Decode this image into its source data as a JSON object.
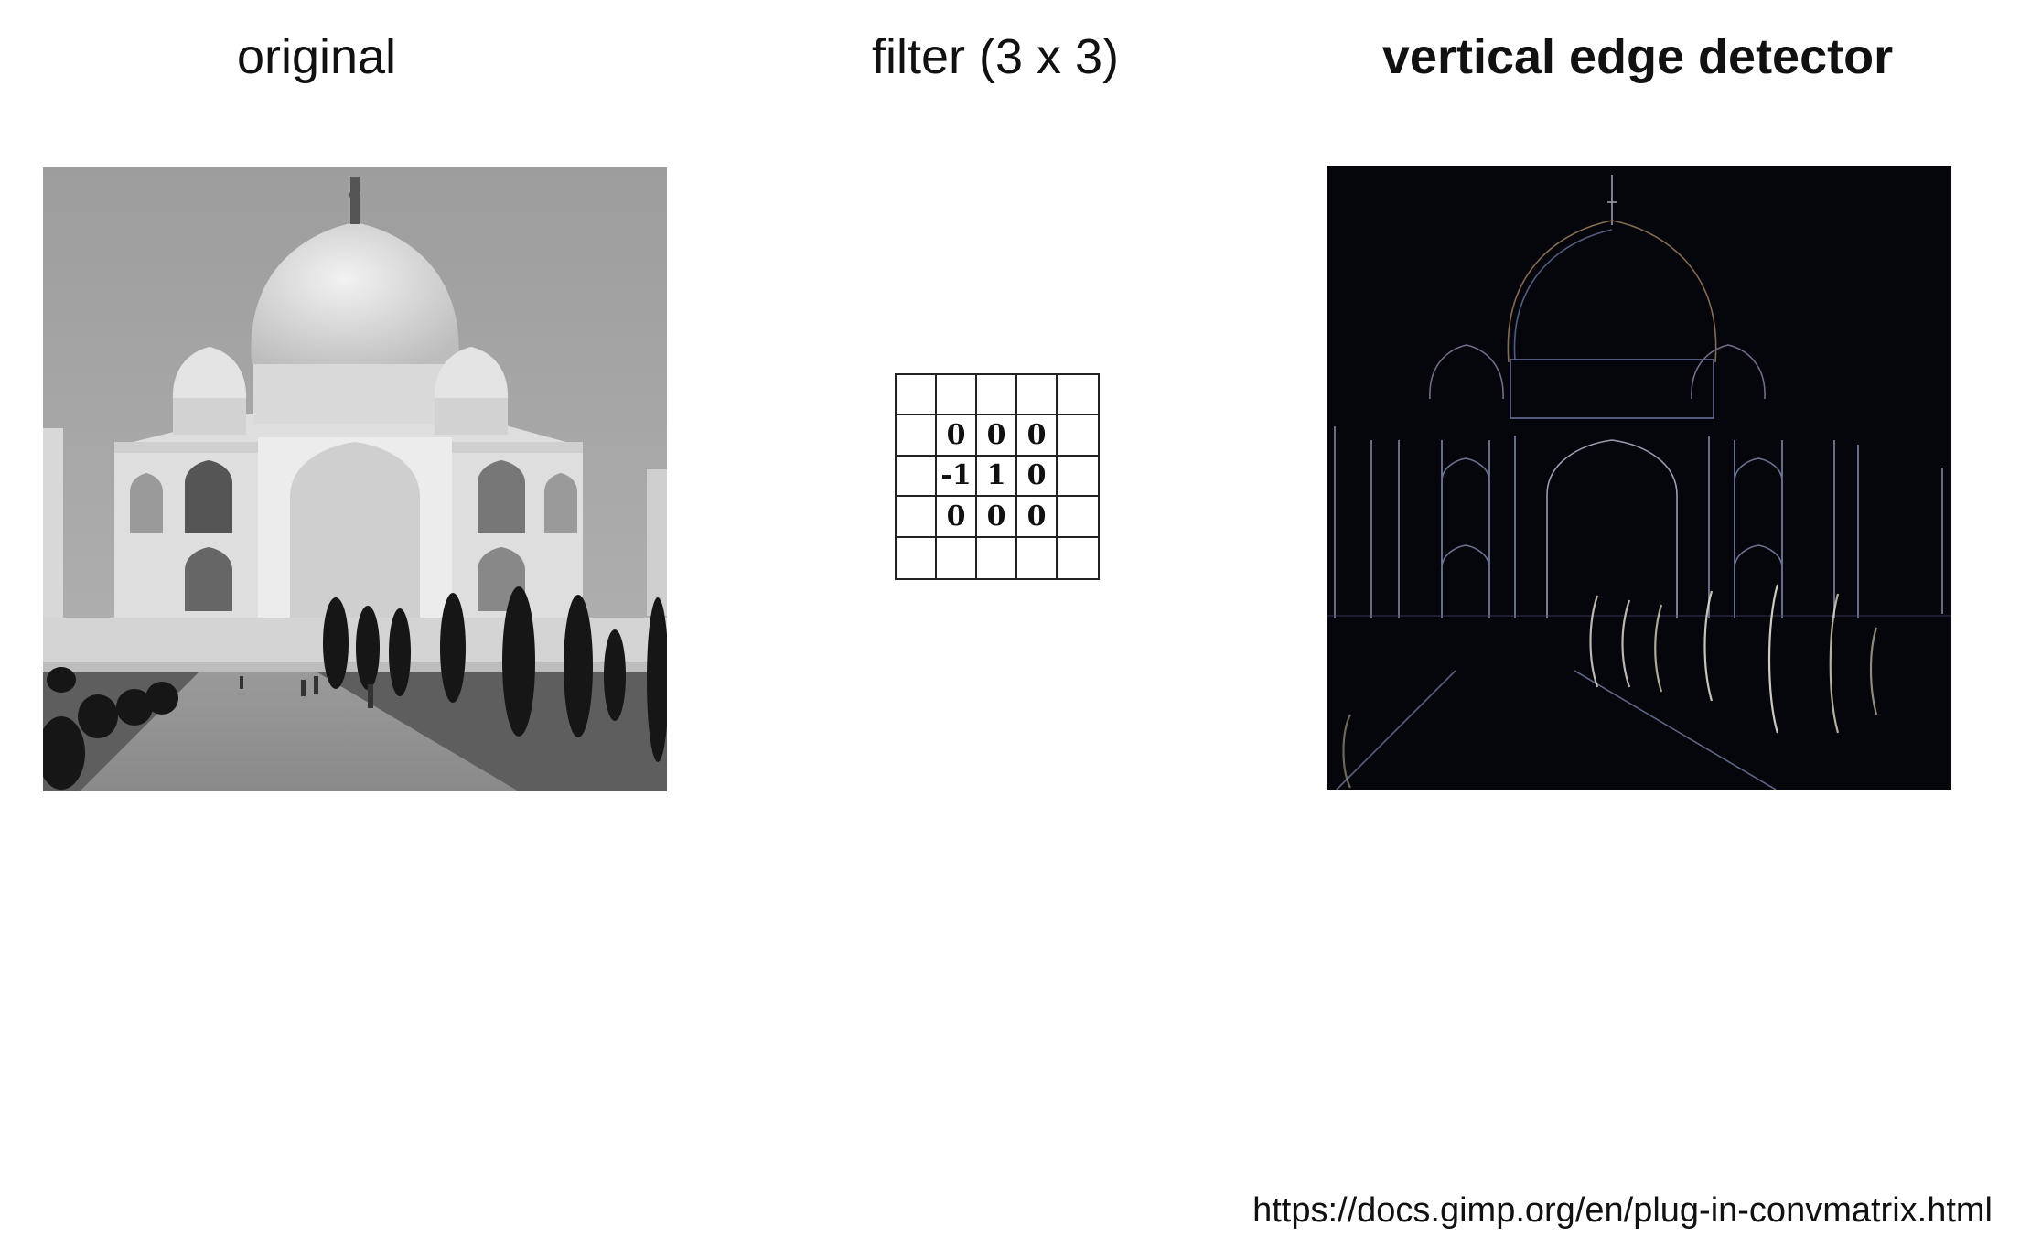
{
  "headings": {
    "original": "original",
    "filter": "filter (3 x 3)",
    "result": "vertical edge detector"
  },
  "kernel": {
    "rows": [
      [
        "",
        "",
        "",
        "",
        ""
      ],
      [
        "",
        "0",
        "0",
        "0",
        ""
      ],
      [
        "",
        "-1",
        "1",
        "0",
        ""
      ],
      [
        "",
        "0",
        "0",
        "0",
        ""
      ],
      [
        "",
        "",
        "",
        "",
        ""
      ]
    ]
  },
  "source_link": "https://docs.gimp.org/en/plug-in-convmatrix.html",
  "colors": {
    "original_sky": "#a7a7a7",
    "building": "#e6e6e6",
    "trees": "#141414",
    "result_background": "#05060b",
    "edge_light": "#c9cfe6",
    "edge_warm": "#b08e6a"
  }
}
